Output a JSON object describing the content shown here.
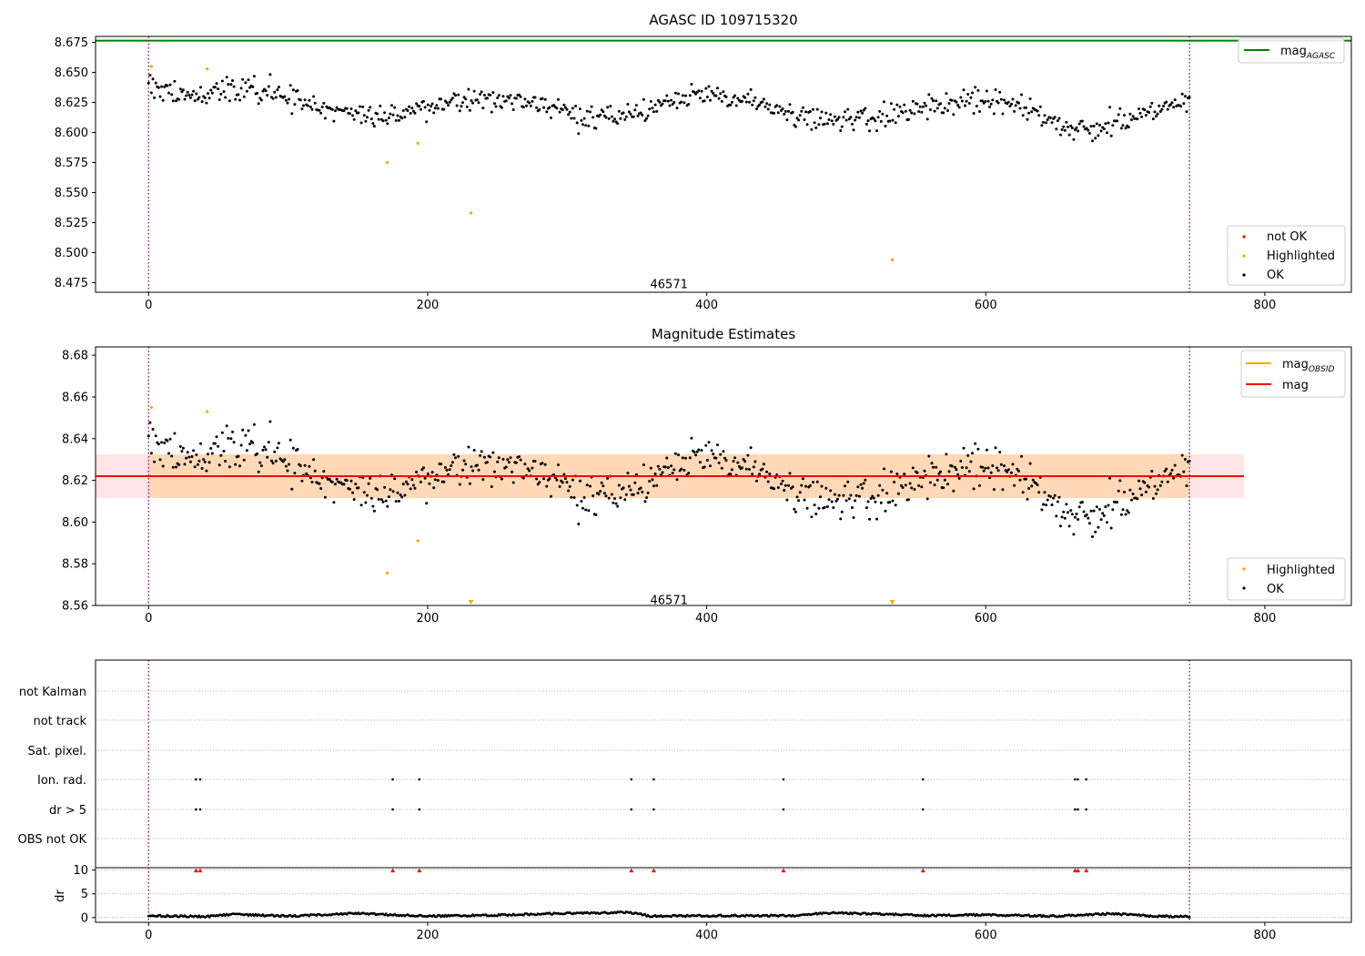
{
  "chart_data": [
    {
      "type": "scatter",
      "title": "AGASC ID 109715320",
      "xlim": [
        -38,
        862
      ],
      "ylim": [
        8.467,
        8.68
      ],
      "xticks": [
        0,
        200,
        400,
        600,
        800
      ],
      "yticks": [
        8.475,
        8.5,
        8.525,
        8.55,
        8.575,
        8.6,
        8.625,
        8.65,
        8.675
      ],
      "ytick_labels": [
        "8.475",
        "8.500",
        "8.525",
        "8.550",
        "8.575",
        "8.600",
        "8.625",
        "8.650",
        "8.675"
      ],
      "hlines": [
        {
          "name": "mag",
          "subscript": "AGASC",
          "y": 8.6765,
          "color": "#008000"
        }
      ],
      "vlines": [
        0,
        746
      ],
      "annotation": {
        "text": "46571",
        "x": 373,
        "y": 8.4735
      },
      "legend_top": {
        "entries": [
          {
            "label": "mag",
            "subscript": "AGASC",
            "color": "#008000"
          }
        ]
      },
      "legend_bottom": {
        "entries": [
          {
            "label": "not OK",
            "color": "#ff0000"
          },
          {
            "label": "Highlighted",
            "color": "#ffa500"
          },
          {
            "label": "OK",
            "color": "#000000"
          }
        ]
      },
      "highlighted": [
        [
          2,
          8.655
        ],
        [
          42,
          8.653
        ],
        [
          171,
          8.575
        ],
        [
          193,
          8.591
        ],
        [
          231,
          8.533
        ],
        [
          533,
          8.494
        ]
      ],
      "ok_profile": {
        "x_end": 746,
        "n": 720,
        "knots": [
          [
            0,
            8.638
          ],
          [
            30,
            8.63
          ],
          [
            75,
            8.638
          ],
          [
            100,
            8.63
          ],
          [
            135,
            8.62
          ],
          [
            150,
            8.612
          ],
          [
            168,
            8.612
          ],
          [
            190,
            8.62
          ],
          [
            230,
            8.628
          ],
          [
            280,
            8.625
          ],
          [
            320,
            8.61
          ],
          [
            350,
            8.616
          ],
          [
            395,
            8.632
          ],
          [
            430,
            8.625
          ],
          [
            470,
            8.612
          ],
          [
            520,
            8.61
          ],
          [
            555,
            8.622
          ],
          [
            590,
            8.628
          ],
          [
            630,
            8.62
          ],
          [
            660,
            8.604
          ],
          [
            700,
            8.61
          ],
          [
            746,
            8.625
          ]
        ],
        "scatter": 0.0065
      }
    },
    {
      "type": "scatter",
      "title": "Magnitude Estimates",
      "xlim": [
        -38,
        862
      ],
      "ylim": [
        8.56,
        8.684
      ],
      "xticks": [
        0,
        200,
        400,
        600,
        800
      ],
      "yticks": [
        8.56,
        8.58,
        8.6,
        8.62,
        8.64,
        8.66,
        8.68
      ],
      "ytick_labels": [
        "8.56",
        "8.58",
        "8.60",
        "8.62",
        "8.64",
        "8.66",
        "8.68"
      ],
      "mag": 8.622,
      "mag_band": [
        8.6115,
        8.6325
      ],
      "mag_obsid_band": {
        "x": [
          0,
          746
        ],
        "y": [
          8.6115,
          8.6325
        ]
      },
      "vlines": [
        0,
        746
      ],
      "annotation": {
        "text": "46571",
        "x": 373,
        "y": 8.5625
      },
      "legend_top": {
        "entries": [
          {
            "label": "mag",
            "subscript": "OBSID",
            "color": "#ffa500"
          },
          {
            "label": "mag",
            "subscript": "",
            "color": "#ff0000"
          }
        ]
      },
      "legend_bottom": {
        "entries": [
          {
            "label": "Highlighted",
            "color": "#ffa500"
          },
          {
            "label": "OK",
            "color": "#000000"
          }
        ]
      },
      "highlighted": [
        [
          2,
          8.655
        ],
        [
          42,
          8.653
        ],
        [
          171,
          8.5755
        ],
        [
          193,
          8.591
        ]
      ],
      "highlighted_offscale": [
        231,
        533
      ]
    },
    {
      "type": "scatter",
      "title": "",
      "xlim": [
        -38,
        862
      ],
      "xticks": [
        0,
        200,
        400,
        600,
        800
      ],
      "flag_rows": [
        "not Kalman",
        "not track",
        "Sat. pixel.",
        "Ion. rad.",
        "dr > 5",
        "OBS not OK"
      ],
      "flag_events_x": [
        34,
        37,
        175,
        194,
        346,
        362,
        455,
        555,
        664,
        666,
        672
      ],
      "vlines": [
        0,
        746
      ],
      "dr": {
        "ylabel": "dr",
        "ylim": [
          -1,
          10.5
        ],
        "yticks": [
          0,
          5,
          10
        ],
        "clip_value": 10,
        "baseline_knots": [
          [
            0,
            0.4
          ],
          [
            40,
            0.2
          ],
          [
            60,
            0.7
          ],
          [
            100,
            0.3
          ],
          [
            150,
            0.9
          ],
          [
            200,
            0.3
          ],
          [
            250,
            0.5
          ],
          [
            300,
            0.9
          ],
          [
            345,
            1.1
          ],
          [
            360,
            0.3
          ],
          [
            410,
            0.4
          ],
          [
            460,
            0.4
          ],
          [
            490,
            1.0
          ],
          [
            530,
            0.7
          ],
          [
            560,
            0.4
          ],
          [
            600,
            0.6
          ],
          [
            650,
            0.3
          ],
          [
            690,
            0.8
          ],
          [
            720,
            0.3
          ],
          [
            746,
            0.2
          ]
        ]
      }
    }
  ]
}
